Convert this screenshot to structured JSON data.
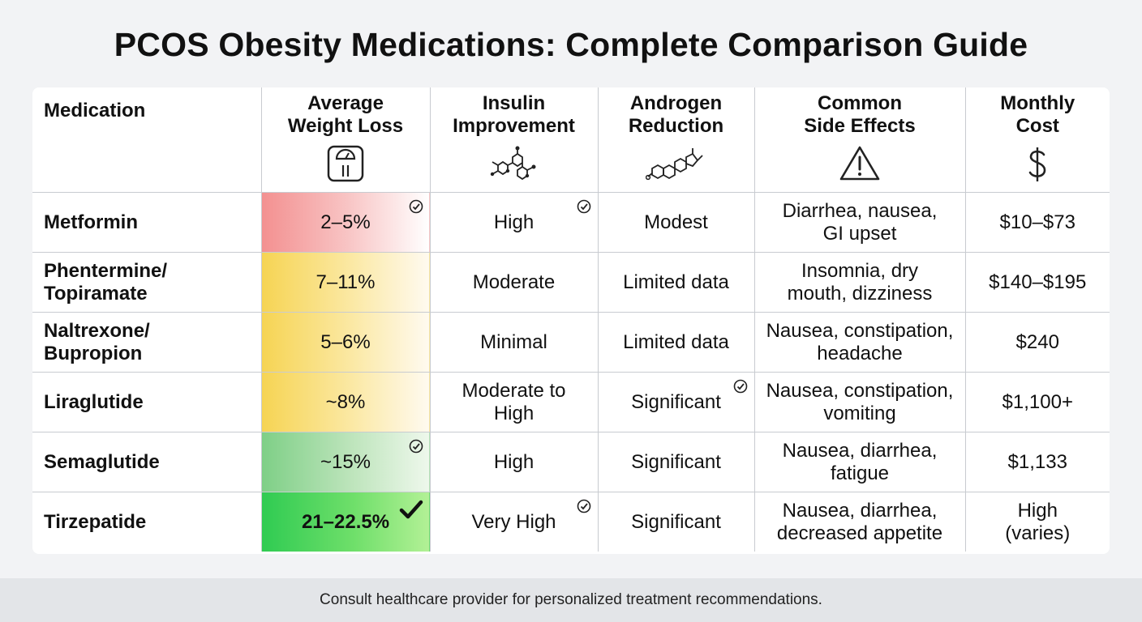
{
  "title": "PCOS Obesity Medications: Complete Comparison Guide",
  "table": {
    "headers": [
      "Medication",
      "Average\nWeight Loss",
      "Insulin\nImprovement",
      "Androgen\nReduction",
      "Common\nSide Effects",
      "Monthly\nCost"
    ],
    "rows": [
      [
        "Metformin",
        "2–5%",
        "High",
        "Modest",
        "Diarrhea, nausea,\nGI upset",
        "$10–$73"
      ],
      [
        "Phentermine/\nTopiramate",
        "7–11%",
        "Moderate",
        "Limited data",
        "Insomnia, dry\nmouth, dizziness",
        "$140–$195"
      ],
      [
        "Naltrexone/\nBupropion",
        "5–6%",
        "Minimal",
        "Limited data",
        "Nausea, constipation,\nheadache",
        "$240"
      ],
      [
        "Liraglutide",
        "~8%",
        "Moderate to\nHigh",
        "Significant",
        "Nausea, constipation,\nvomiting",
        "$1,100+"
      ],
      [
        "Semaglutide",
        "~15%",
        "High",
        "Significant",
        "Nausea, diarrhea,\nfatigue",
        "$1,133"
      ],
      [
        "Tirzepatide",
        "21–22.5%",
        "Very High",
        "Significant",
        "Nausea, diarrhea,\ndecreased appetite",
        "High\n(varies)"
      ]
    ]
  },
  "footer": "Consult healthcare provider for personalized treatment recommendations."
}
